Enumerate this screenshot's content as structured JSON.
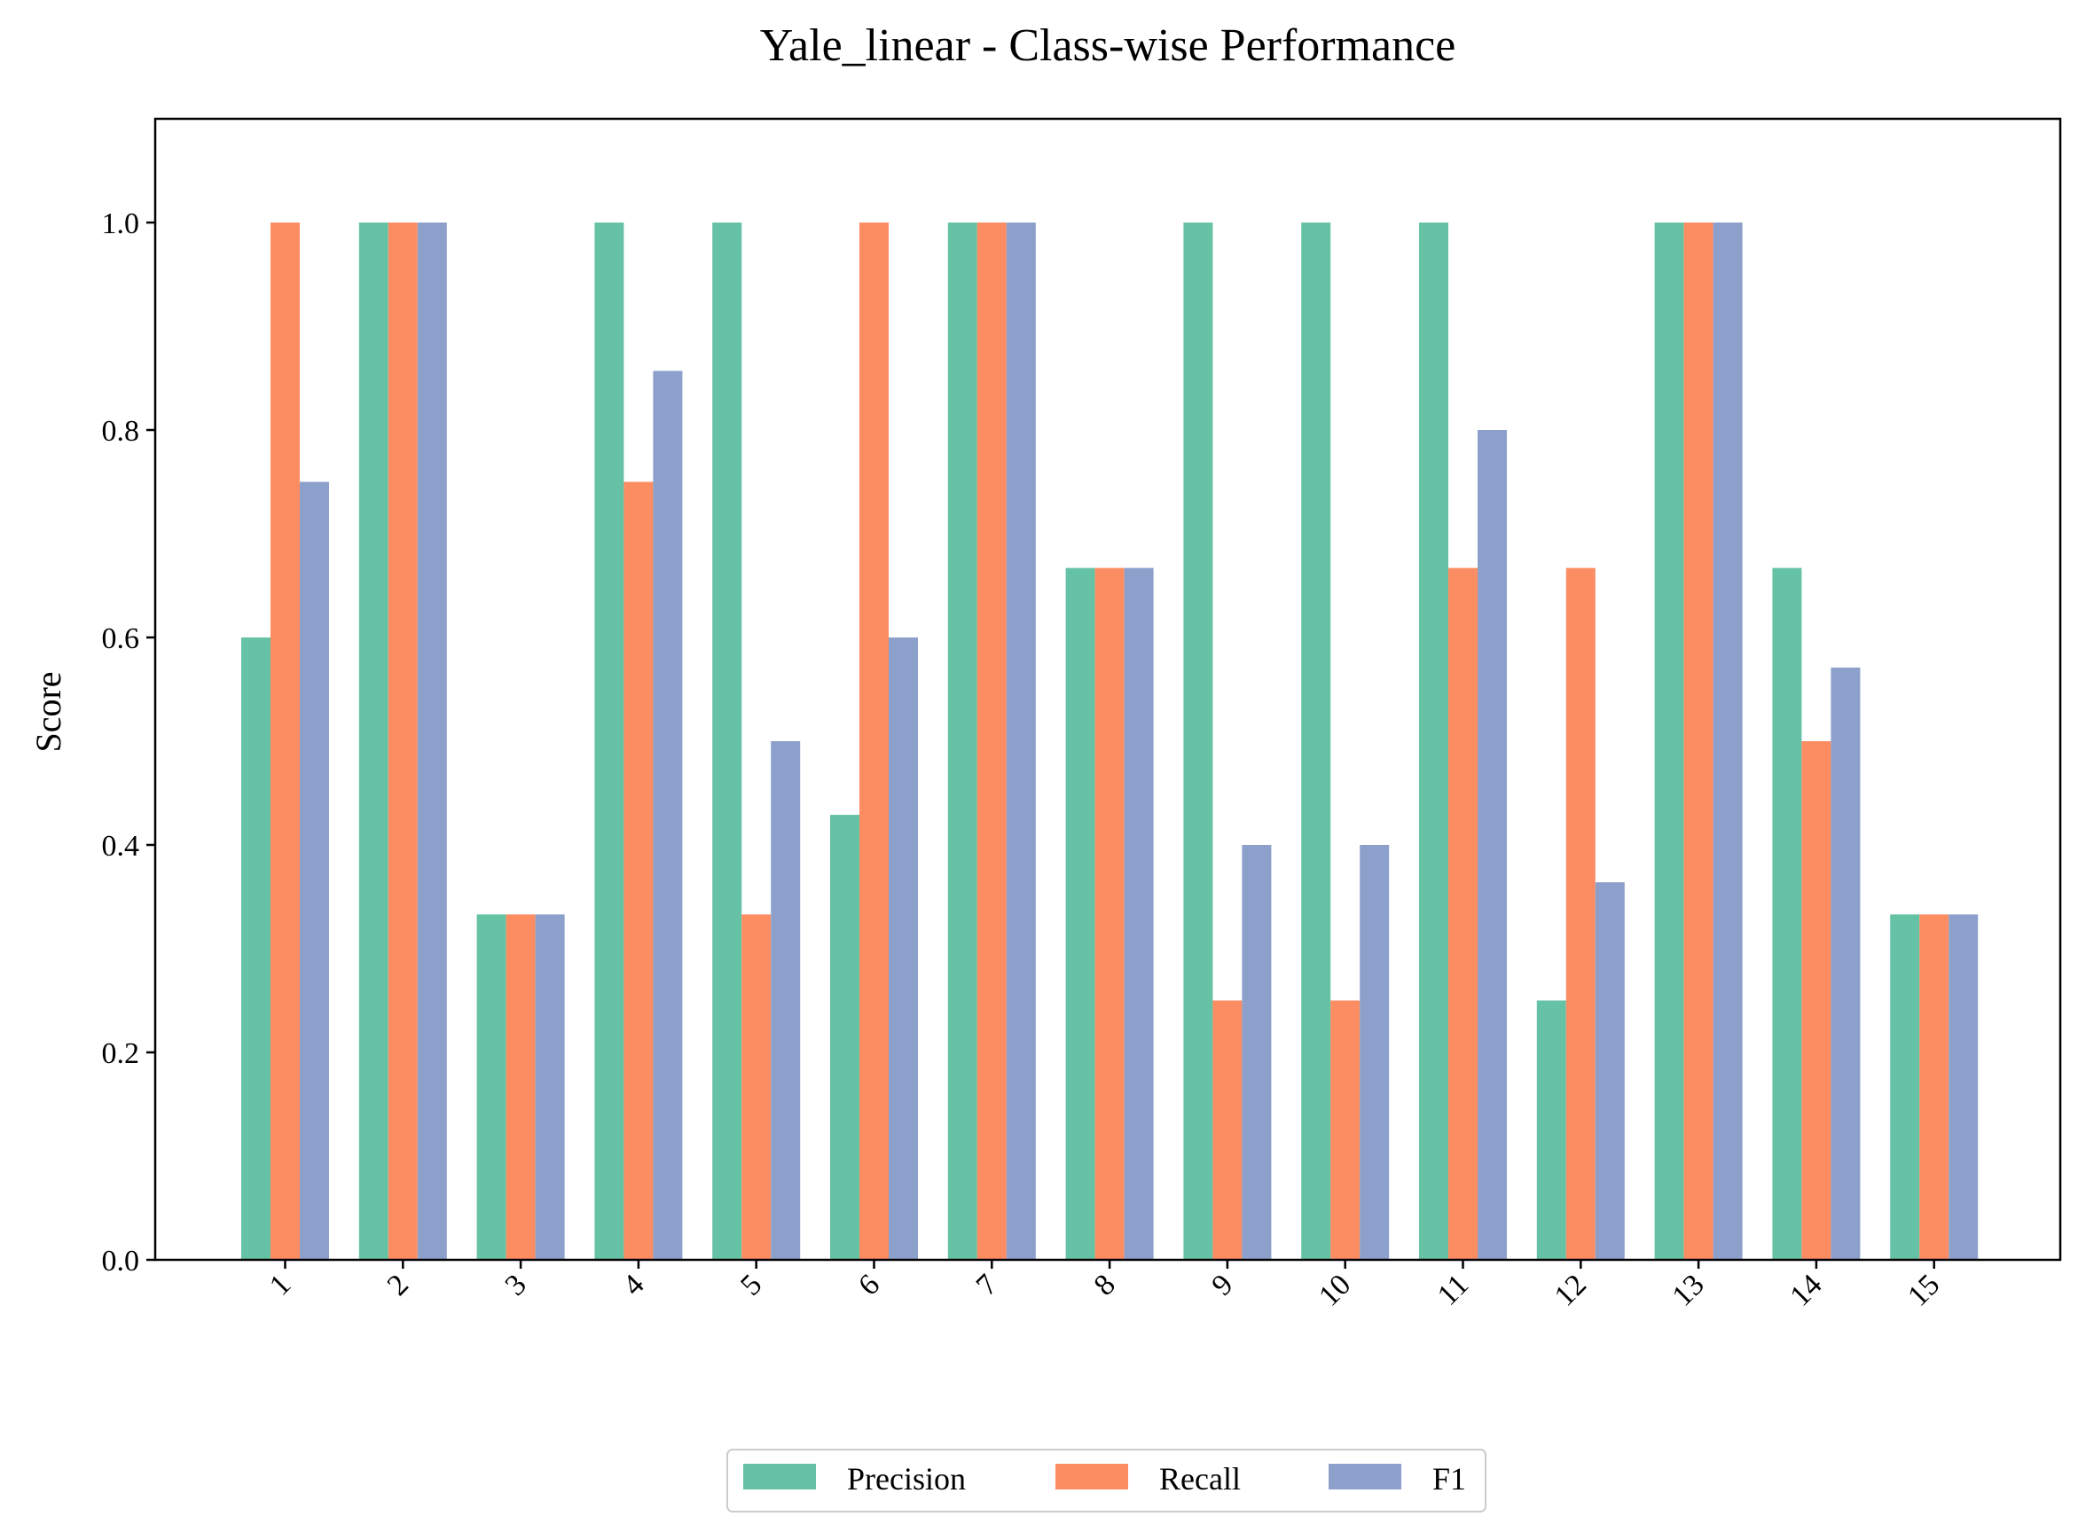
{
  "chart_data": {
    "type": "bar",
    "title": "Yale_linear - Class-wise Performance",
    "xlabel": "",
    "ylabel": "Score",
    "ylim": [
      0,
      1.1
    ],
    "yticks": [
      "0.0",
      "0.2",
      "0.4",
      "0.6",
      "0.8",
      "1.0"
    ],
    "categories": [
      "1",
      "2",
      "3",
      "4",
      "5",
      "6",
      "7",
      "8",
      "9",
      "10",
      "11",
      "12",
      "13",
      "14",
      "15"
    ],
    "series": [
      {
        "name": "Precision",
        "color": "#66c2a5",
        "values": [
          0.6,
          1.0,
          0.333,
          1.0,
          1.0,
          0.429,
          1.0,
          0.667,
          1.0,
          1.0,
          1.0,
          0.25,
          1.0,
          0.667,
          0.333
        ]
      },
      {
        "name": "Recall",
        "color": "#fc8d62",
        "values": [
          1.0,
          1.0,
          0.333,
          0.75,
          0.333,
          1.0,
          1.0,
          0.667,
          0.25,
          0.25,
          0.667,
          0.667,
          1.0,
          0.5,
          0.333
        ]
      },
      {
        "name": "F1",
        "color": "#8da0cb",
        "values": [
          0.75,
          1.0,
          0.333,
          0.857,
          0.5,
          0.6,
          1.0,
          0.667,
          0.4,
          0.4,
          0.8,
          0.364,
          1.0,
          0.571,
          0.333
        ]
      }
    ],
    "legend_position": "bottom-center",
    "grid": false
  }
}
